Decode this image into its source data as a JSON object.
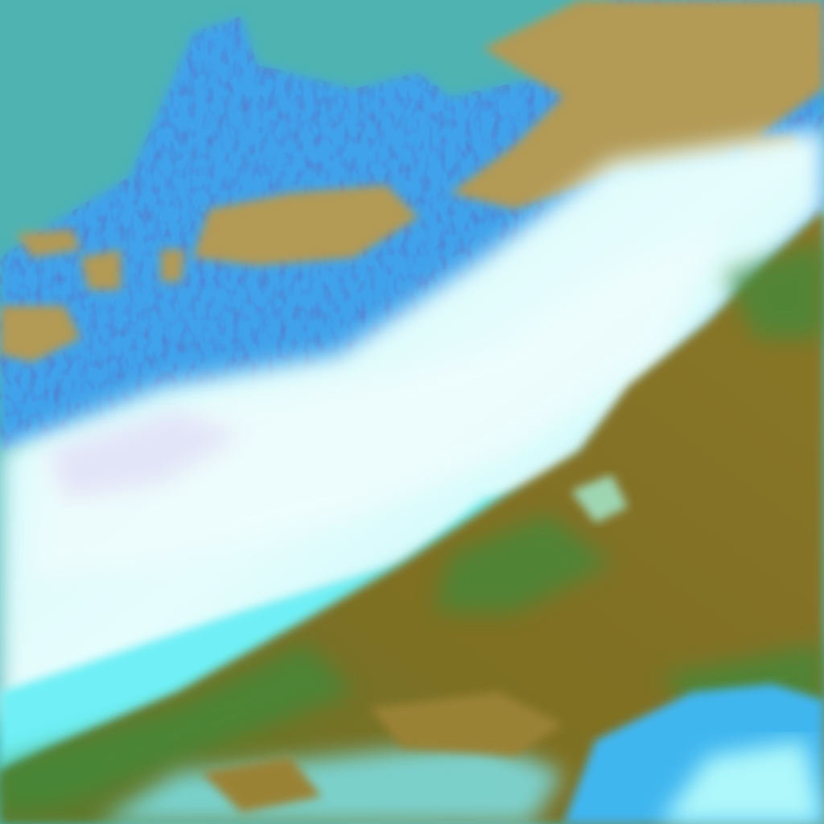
{
  "image": {
    "kind": "false-color satellite imagery",
    "colors": {
      "sea": "#4fb3b2",
      "cloud_blue": "#3fa4ee",
      "cloud_bright": "#aef6fb",
      "cloud_white": "#e8fdfd",
      "land_brown": "#8c7a2a",
      "land_tan": "#b59a5a",
      "vegetation_green": "#3f8a3a",
      "texture_dark": "#1a2a8a"
    }
  }
}
